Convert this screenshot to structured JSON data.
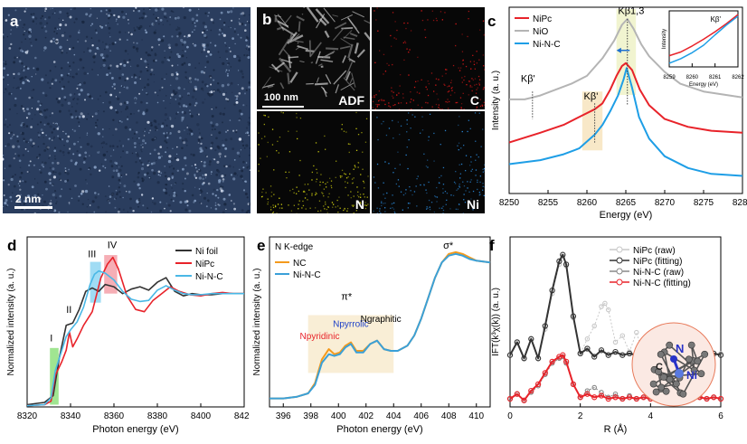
{
  "panels": {
    "a": {
      "label": "a",
      "scale_bar": "2 nm",
      "image": "HAADF-STEM image of atomically dispersed Ni sites"
    },
    "b": {
      "label": "b",
      "scale_bar": "100 nm",
      "tiles": [
        {
          "tag": "ADF",
          "color": "#d8d8d8"
        },
        {
          "tag": "C",
          "color": "#e01818"
        },
        {
          "tag": "N",
          "color": "#d6d610"
        },
        {
          "tag": "Ni",
          "color": "#2a88d8"
        }
      ]
    },
    "c": {
      "label": "c"
    },
    "d": {
      "label": "d"
    },
    "e": {
      "label": "e"
    },
    "f": {
      "label": "f"
    }
  },
  "chart_data": [
    {
      "id": "c",
      "type": "line",
      "xlabel": "Energy (eV)",
      "ylabel": "Intensity  (a. u.)",
      "xlim": [
        8250,
        8280
      ],
      "xticks": [
        8250,
        8255,
        8260,
        8265,
        8270,
        8275,
        8280
      ],
      "legend": [
        "NiPc",
        "NiO",
        "Ni-N-C"
      ],
      "annotations": [
        "Kβ'",
        "Kβ'",
        "Kβ1,3"
      ],
      "series": [
        {
          "name": "NiPc",
          "color": "#e8232a",
          "x": [
            8250,
            8254,
            8257,
            8259,
            8261,
            8262,
            8263,
            8263.8,
            8264.5,
            8265,
            8265.8,
            8266.8,
            8268,
            8270,
            8273,
            8276,
            8280
          ],
          "y": [
            0.36,
            0.41,
            0.45,
            0.49,
            0.53,
            0.56,
            0.63,
            0.7,
            0.75,
            0.765,
            0.73,
            0.63,
            0.55,
            0.48,
            0.44,
            0.42,
            0.41
          ]
        },
        {
          "name": "NiO",
          "color": "#b4b4b4",
          "x": [
            8250,
            8252,
            8254,
            8256,
            8258,
            8260,
            8262,
            8263.5,
            8264.5,
            8265.2,
            8266,
            8267,
            8268,
            8270,
            8272,
            8275,
            8280
          ],
          "y": [
            0.58,
            0.58,
            0.6,
            0.63,
            0.66,
            0.7,
            0.79,
            0.88,
            0.96,
            0.99,
            0.94,
            0.86,
            0.8,
            0.72,
            0.66,
            0.62,
            0.59
          ]
        },
        {
          "name": "Ni-N-C",
          "color": "#1e9ee6",
          "x": [
            8250,
            8254,
            8257,
            8259,
            8261,
            8262,
            8263,
            8264,
            8264.7,
            8265.1,
            8265.8,
            8266.7,
            8268,
            8270,
            8273,
            8276,
            8280
          ],
          "y": [
            0.25,
            0.27,
            0.3,
            0.33,
            0.4,
            0.45,
            0.52,
            0.6,
            0.68,
            0.74,
            0.64,
            0.49,
            0.38,
            0.29,
            0.23,
            0.2,
            0.19
          ]
        }
      ],
      "inset": {
        "xlabel": "Energy (eV)",
        "ylabel": "Intensity",
        "xlim": [
          8259,
          8262
        ],
        "xticks": [
          8259,
          8260,
          8261,
          8262
        ],
        "annotation": "Kβ'",
        "series": [
          {
            "name": "NiPc",
            "color": "#e8232a",
            "x": [
              8259,
              8259.5,
              8260,
              8260.5,
              8261,
              8261.5,
              8262
            ],
            "y": [
              0.25,
              0.3,
              0.38,
              0.47,
              0.57,
              0.68,
              0.8
            ]
          },
          {
            "name": "Ni-N-C",
            "color": "#1e9ee6",
            "x": [
              8259,
              8259.5,
              8260,
              8260.5,
              8261,
              8261.5,
              8262
            ],
            "y": [
              0.15,
              0.21,
              0.29,
              0.39,
              0.53,
              0.66,
              0.78
            ]
          }
        ]
      }
    },
    {
      "id": "d",
      "type": "line",
      "xlabel": "Photon energy (eV)",
      "ylabel": "Normalized intensity (a. u.)",
      "xlim": [
        8320,
        8420
      ],
      "ylim": [
        0,
        1.5
      ],
      "xticks": [
        8320,
        8340,
        8360,
        8380,
        8400,
        8420
      ],
      "legend": [
        "Ni foil",
        "NiPc",
        "Ni-N-C"
      ],
      "annotations": [
        "I",
        "II",
        "III",
        "IV"
      ],
      "series": [
        {
          "name": "Ni foil",
          "color": "#333333",
          "x": [
            8320,
            8328,
            8332,
            8335,
            8338,
            8341,
            8344,
            8347,
            8350,
            8353,
            8356,
            8360,
            8364,
            8368,
            8372,
            8376,
            8380,
            8384,
            8388,
            8392,
            8396,
            8400,
            8405,
            8410,
            8415,
            8420
          ],
          "y": [
            0.02,
            0.04,
            0.1,
            0.45,
            0.72,
            0.74,
            0.86,
            1.02,
            1.05,
            1.02,
            1.08,
            1.06,
            1.0,
            1.04,
            1.06,
            1.03,
            1.1,
            1.14,
            1.02,
            0.98,
            1.0,
            0.99,
            0.99,
            1.0,
            1.0,
            1.0
          ]
        },
        {
          "name": "NiPc",
          "color": "#e8232a",
          "x": [
            8320,
            8328,
            8331,
            8333,
            8336,
            8338,
            8339.5,
            8341,
            8343,
            8346,
            8350,
            8354,
            8357,
            8359.5,
            8362,
            8366,
            8370,
            8374,
            8378,
            8382,
            8386,
            8390,
            8395,
            8400,
            8405,
            8410,
            8415,
            8420
          ],
          "y": [
            0.01,
            0.02,
            0.05,
            0.28,
            0.4,
            0.5,
            0.66,
            0.53,
            0.6,
            0.72,
            0.84,
            1.14,
            1.26,
            1.32,
            1.22,
            0.98,
            0.86,
            0.84,
            0.94,
            1.0,
            1.06,
            1.02,
            0.99,
            0.98,
            1.0,
            1.01,
            1.0,
            1.0
          ]
        },
        {
          "name": "Ni-N-C",
          "color": "#4ab8e6",
          "x": [
            8320,
            8328,
            8331,
            8333,
            8336,
            8338,
            8340,
            8343,
            8346,
            8349,
            8351,
            8353,
            8356,
            8360,
            8364,
            8368,
            8372,
            8376,
            8380,
            8384,
            8388,
            8392,
            8396,
            8400,
            8405,
            8410,
            8415,
            8420
          ],
          "y": [
            0.01,
            0.02,
            0.08,
            0.32,
            0.5,
            0.62,
            0.68,
            0.75,
            0.88,
            1.08,
            1.17,
            1.2,
            1.18,
            1.12,
            1.02,
            0.95,
            0.93,
            0.94,
            1.03,
            1.07,
            1.03,
            1.0,
            0.99,
            0.99,
            1.0,
            1.0,
            1.0,
            1.0
          ]
        }
      ]
    },
    {
      "id": "e",
      "type": "line",
      "title": "N K-edge",
      "xlabel": "Photon energy (eV)",
      "ylabel": "Normalized intensity (a. u.)",
      "xlim": [
        395,
        411
      ],
      "xticks": [
        396,
        398,
        400,
        402,
        404,
        406,
        408,
        410
      ],
      "legend": [
        "NC",
        "Ni-N-C"
      ],
      "annotations": [
        "σ*",
        "π*",
        "Npyridinic",
        "Npyrrolic",
        "Ngraphitic"
      ],
      "series": [
        {
          "name": "NC",
          "color": "#f49a1c",
          "x": [
            395,
            396,
            397,
            397.8,
            398.3,
            398.8,
            399.3,
            399.7,
            400.1,
            400.5,
            400.9,
            401.3,
            401.8,
            402.3,
            402.8,
            403.3,
            403.8,
            404.3,
            405,
            405.5,
            406,
            406.5,
            407,
            407.5,
            408,
            408.5,
            409,
            409.5,
            410,
            411
          ],
          "y": [
            0.05,
            0.05,
            0.06,
            0.08,
            0.14,
            0.28,
            0.34,
            0.31,
            0.32,
            0.36,
            0.38,
            0.33,
            0.33,
            0.37,
            0.39,
            0.34,
            0.33,
            0.33,
            0.36,
            0.42,
            0.52,
            0.64,
            0.76,
            0.85,
            0.9,
            0.91,
            0.9,
            0.88,
            0.86,
            0.85
          ]
        },
        {
          "name": "Ni-N-C",
          "color": "#3aa0d8",
          "x": [
            395,
            396,
            397,
            397.8,
            398.3,
            398.8,
            399.3,
            399.7,
            400.1,
            400.5,
            400.9,
            401.3,
            401.8,
            402.3,
            402.8,
            403.3,
            403.8,
            404.3,
            405,
            405.5,
            406,
            406.5,
            407,
            407.5,
            408,
            408.5,
            409,
            409.5,
            410,
            411
          ],
          "y": [
            0.05,
            0.05,
            0.06,
            0.08,
            0.13,
            0.26,
            0.31,
            0.3,
            0.31,
            0.35,
            0.37,
            0.32,
            0.32,
            0.37,
            0.39,
            0.34,
            0.33,
            0.33,
            0.36,
            0.42,
            0.52,
            0.64,
            0.76,
            0.85,
            0.89,
            0.9,
            0.89,
            0.87,
            0.86,
            0.85
          ]
        }
      ]
    },
    {
      "id": "f",
      "type": "line",
      "xlabel": "R (Å)",
      "ylabel": "IFT(k³χ(k)) (a. u.)",
      "xlim": [
        0,
        6
      ],
      "xticks": [
        0,
        2,
        4,
        6
      ],
      "legend": [
        "NiPc (raw)",
        "NiPc (fitting)",
        "Ni-N-C (raw)",
        "Ni-N-C (fitting)"
      ],
      "molecule_labels": [
        "N",
        "C",
        "Ni"
      ],
      "series": [
        {
          "name": "NiPc (raw)",
          "color": "#c8c8c8",
          "x": [
            0,
            0.2,
            0.4,
            0.6,
            0.8,
            1.0,
            1.2,
            1.4,
            1.5,
            1.6,
            1.8,
            2.0,
            2.2,
            2.4,
            2.6,
            2.7,
            2.8,
            3.0,
            3.2,
            3.4,
            3.6,
            3.8,
            4.0,
            4.2,
            4.4,
            4.6,
            4.8,
            5.0,
            5.2,
            5.4,
            5.6,
            5.8,
            6.0
          ],
          "y": [
            0.32,
            0.4,
            0.3,
            0.42,
            0.3,
            0.48,
            0.7,
            0.88,
            0.93,
            0.87,
            0.55,
            0.33,
            0.42,
            0.5,
            0.62,
            0.64,
            0.6,
            0.4,
            0.44,
            0.34,
            0.46,
            0.32,
            0.4,
            0.3,
            0.42,
            0.3,
            0.4,
            0.31,
            0.36,
            0.32,
            0.34,
            0.32,
            0.33
          ]
        },
        {
          "name": "NiPc (fitting)",
          "color": "#333333",
          "x": [
            0,
            0.2,
            0.4,
            0.6,
            0.8,
            1.0,
            1.2,
            1.4,
            1.5,
            1.6,
            1.8,
            2.0,
            2.2,
            2.4,
            2.6,
            2.8,
            3.0,
            3.2,
            3.4,
            3.6,
            3.8,
            4.0,
            4.2,
            4.4,
            4.6,
            4.8,
            5.0,
            5.2,
            5.4,
            5.6,
            5.8,
            6.0
          ],
          "y": [
            0.32,
            0.4,
            0.3,
            0.42,
            0.3,
            0.5,
            0.72,
            0.9,
            0.94,
            0.88,
            0.56,
            0.33,
            0.36,
            0.31,
            0.35,
            0.32,
            0.34,
            0.32,
            0.33,
            0.32,
            0.33,
            0.32,
            0.33,
            0.32,
            0.33,
            0.32,
            0.33,
            0.32,
            0.33,
            0.32,
            0.33,
            0.32
          ]
        },
        {
          "name": "Ni-N-C (raw)",
          "color": "#888888",
          "x": [
            0,
            0.2,
            0.4,
            0.6,
            0.8,
            1.0,
            1.2,
            1.4,
            1.5,
            1.6,
            1.8,
            2.0,
            2.2,
            2.4,
            2.6,
            2.8,
            3.0,
            3.2,
            3.4,
            3.6,
            3.8,
            4.0,
            4.2,
            4.4,
            4.6,
            4.8,
            5.0,
            5.2,
            5.4,
            5.6,
            5.8,
            6.0
          ],
          "y": [
            0.05,
            0.08,
            0.04,
            0.09,
            0.13,
            0.2,
            0.27,
            0.3,
            0.31,
            0.27,
            0.14,
            0.06,
            0.1,
            0.12,
            0.09,
            0.06,
            0.08,
            0.05,
            0.07,
            0.05,
            0.06,
            0.05,
            0.06,
            0.05,
            0.06,
            0.05,
            0.06,
            0.05,
            0.06,
            0.05,
            0.06,
            0.05
          ]
        },
        {
          "name": "Ni-N-C (fitting)",
          "color": "#e8232a",
          "x": [
            0,
            0.2,
            0.4,
            0.6,
            0.8,
            1.0,
            1.2,
            1.4,
            1.5,
            1.6,
            1.8,
            2.0,
            2.2,
            2.4,
            2.6,
            2.8,
            3.0,
            3.2,
            3.4,
            3.6,
            3.8,
            4.0,
            4.2,
            4.4,
            4.6,
            4.8,
            5.0,
            5.2,
            5.4,
            5.6,
            5.8,
            6.0
          ],
          "y": [
            0.05,
            0.08,
            0.04,
            0.1,
            0.14,
            0.21,
            0.28,
            0.31,
            0.32,
            0.28,
            0.14,
            0.06,
            0.08,
            0.06,
            0.07,
            0.05,
            0.06,
            0.05,
            0.06,
            0.05,
            0.06,
            0.05,
            0.06,
            0.05,
            0.06,
            0.05,
            0.06,
            0.05,
            0.06,
            0.05,
            0.06,
            0.05
          ]
        }
      ]
    }
  ]
}
